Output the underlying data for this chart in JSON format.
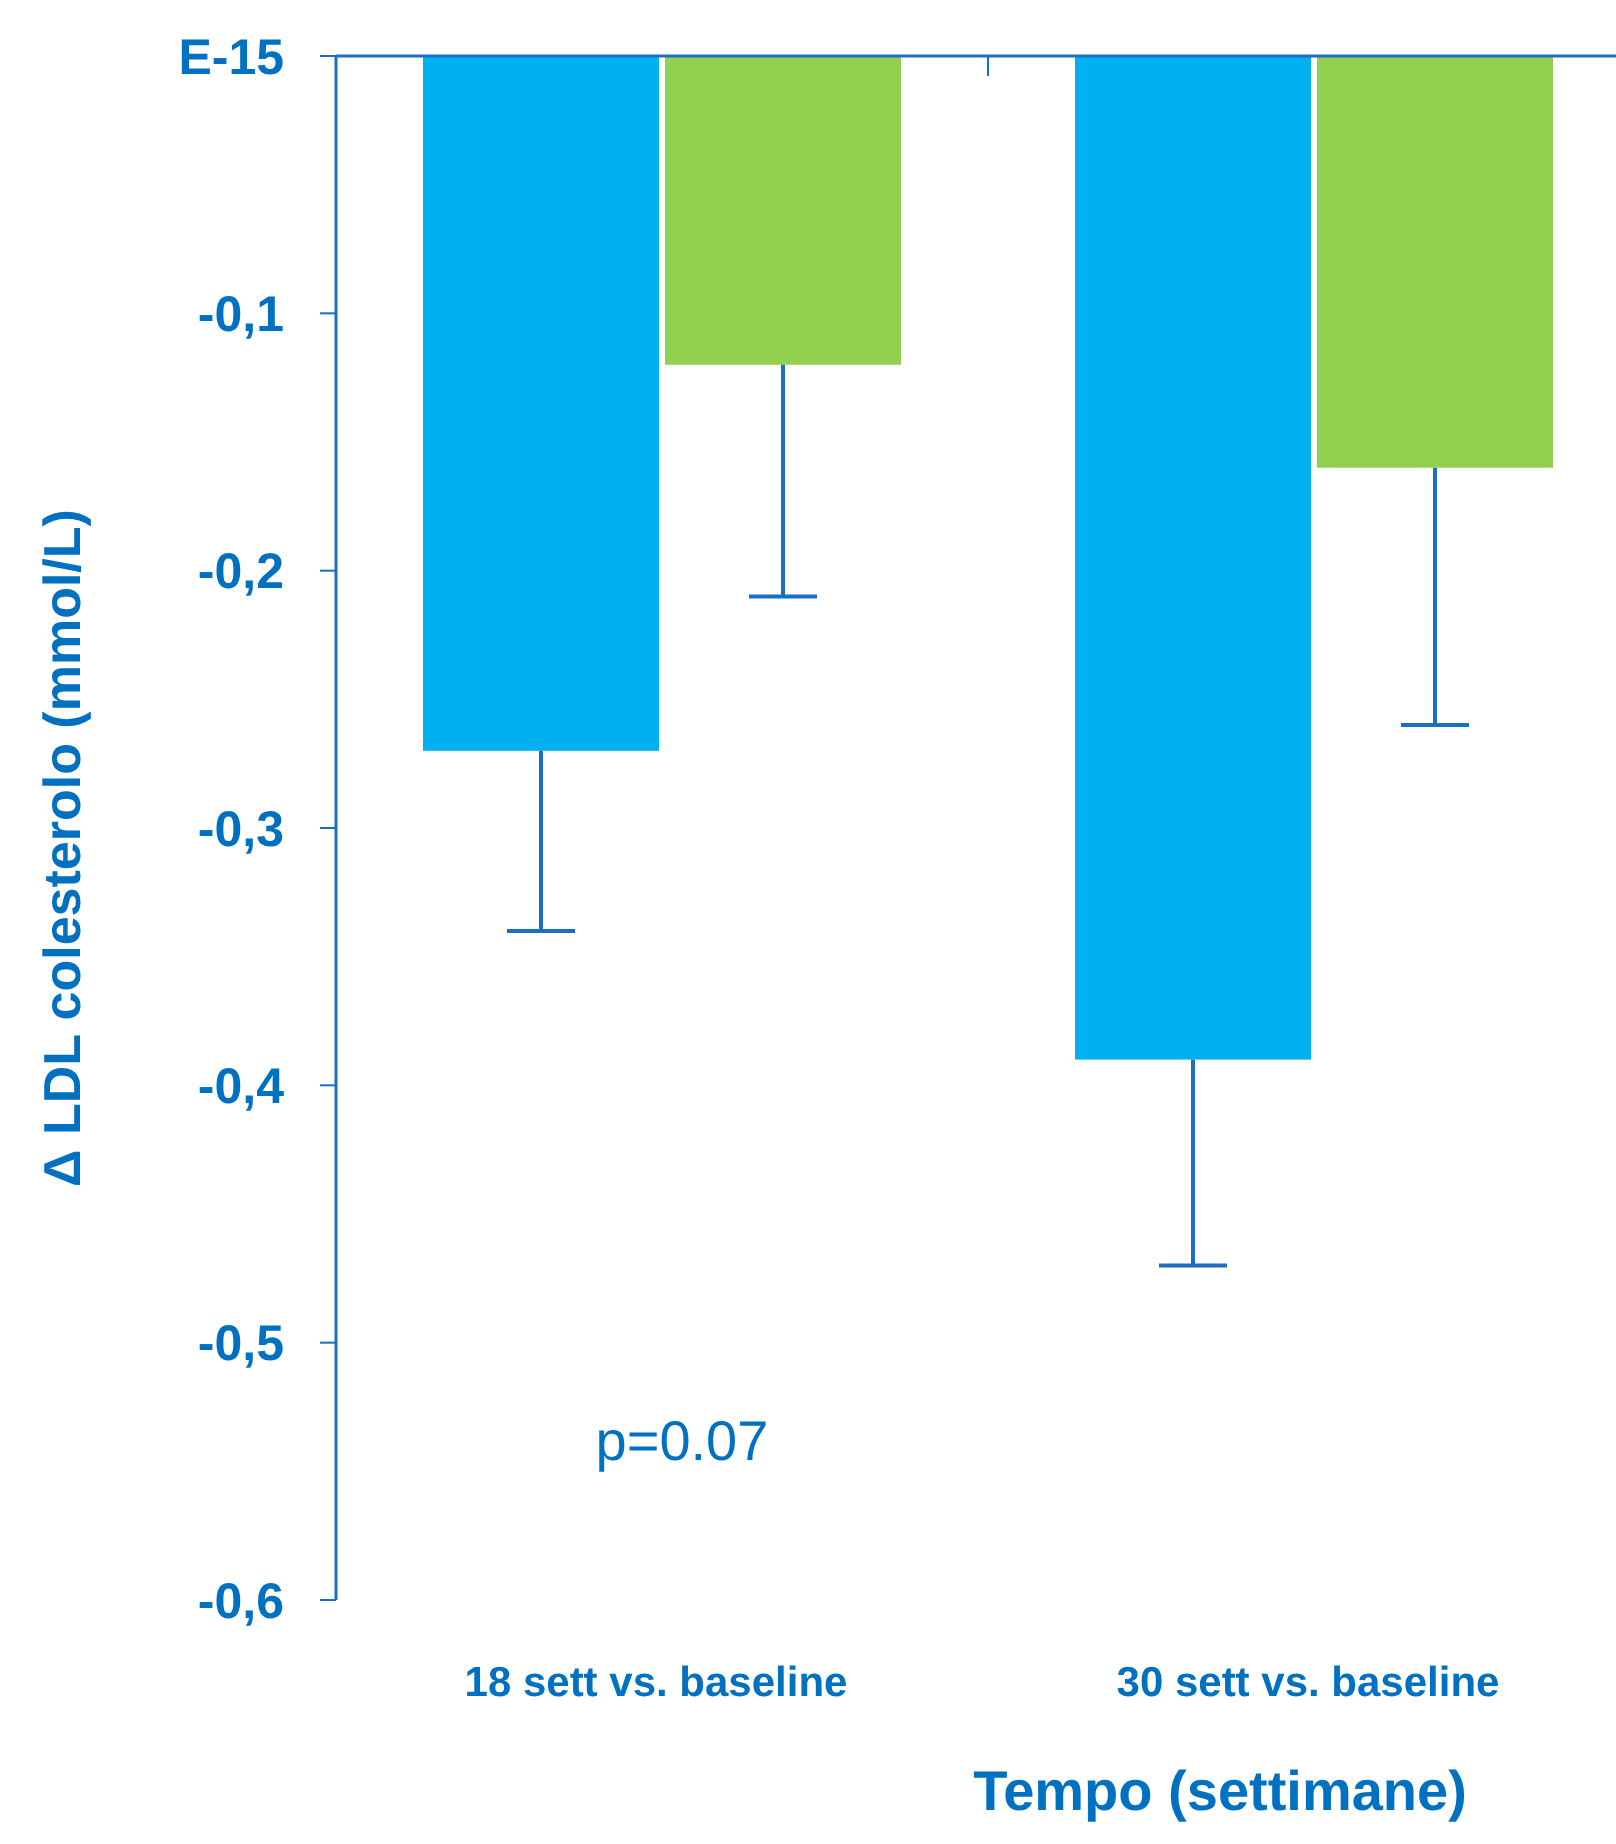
{
  "chart_data": {
    "type": "bar",
    "xlabel": "Tempo (settimane)",
    "ylabel": "Δ LDL colesterolo (mmol/L)",
    "categories": [
      "18 sett vs. baseline",
      "30 sett vs. baseline"
    ],
    "series": [
      {
        "color": "#00b0f0",
        "values": [
          -0.27,
          -0.39
        ],
        "errors": [
          [
            -0.34,
            -0.27
          ],
          [
            -0.47,
            -0.39
          ]
        ]
      },
      {
        "color": "#92d050",
        "values": [
          -0.12,
          -0.16
        ],
        "errors": [
          [
            -0.21,
            -0.12
          ],
          [
            -0.26,
            -0.16
          ]
        ]
      }
    ],
    "ylim": [
      -0.6,
      0
    ],
    "yticks": [
      {
        "value": 0,
        "label": "E-15"
      },
      {
        "value": -0.1,
        "label": "-0,1"
      },
      {
        "value": -0.2,
        "label": "-0,2"
      },
      {
        "value": -0.3,
        "label": "-0,3"
      },
      {
        "value": -0.4,
        "label": "-0,4"
      },
      {
        "value": -0.5,
        "label": "-0,5"
      },
      {
        "value": -0.6,
        "label": "-0,6"
      }
    ],
    "annotations": [
      "p=0.07"
    ],
    "grid": false
  }
}
